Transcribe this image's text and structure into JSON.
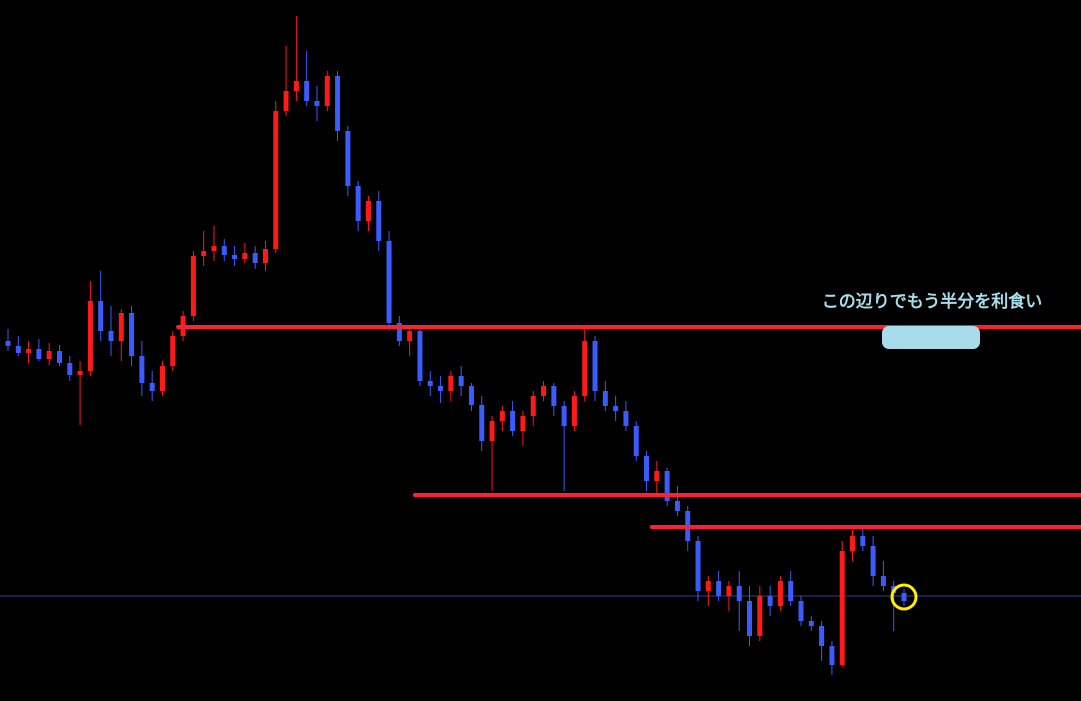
{
  "chart_data": {
    "type": "candlestick",
    "ylim": [
      0,
      701
    ],
    "up_color": "#ff1a1a",
    "down_color": "#3a5cff",
    "ohlc": [
      [
        360,
        372,
        350,
        355
      ],
      [
        355,
        365,
        345,
        348
      ],
      [
        348,
        360,
        338,
        352
      ],
      [
        352,
        362,
        340,
        342
      ],
      [
        342,
        358,
        336,
        350
      ],
      [
        350,
        356,
        335,
        338
      ],
      [
        338,
        345,
        320,
        326
      ],
      [
        326,
        340,
        276,
        330
      ],
      [
        330,
        420,
        325,
        400
      ],
      [
        400,
        430,
        360,
        370
      ],
      [
        370,
        395,
        345,
        360
      ],
      [
        360,
        392,
        340,
        388
      ],
      [
        388,
        395,
        335,
        345
      ],
      [
        345,
        360,
        305,
        318
      ],
      [
        318,
        330,
        300,
        310
      ],
      [
        310,
        340,
        305,
        335
      ],
      [
        335,
        370,
        330,
        365
      ],
      [
        365,
        390,
        360,
        385
      ],
      [
        385,
        450,
        380,
        445
      ],
      [
        445,
        470,
        435,
        450
      ],
      [
        450,
        475,
        440,
        455
      ],
      [
        455,
        462,
        440,
        446
      ],
      [
        446,
        455,
        435,
        442
      ],
      [
        442,
        458,
        438,
        448
      ],
      [
        448,
        455,
        432,
        438
      ],
      [
        438,
        460,
        430,
        452
      ],
      [
        452,
        600,
        448,
        590
      ],
      [
        590,
        655,
        585,
        610
      ],
      [
        610,
        685,
        600,
        620
      ],
      [
        620,
        650,
        595,
        600
      ],
      [
        600,
        615,
        580,
        595
      ],
      [
        595,
        630,
        590,
        625
      ],
      [
        625,
        630,
        560,
        570
      ],
      [
        570,
        575,
        505,
        515
      ],
      [
        515,
        520,
        470,
        480
      ],
      [
        480,
        505,
        470,
        500
      ],
      [
        500,
        510,
        450,
        460
      ],
      [
        460,
        470,
        370,
        378
      ],
      [
        378,
        385,
        355,
        360
      ],
      [
        360,
        375,
        345,
        370
      ],
      [
        370,
        372,
        315,
        320
      ],
      [
        320,
        330,
        305,
        315
      ],
      [
        315,
        325,
        298,
        310
      ],
      [
        310,
        330,
        300,
        325
      ],
      [
        325,
        335,
        305,
        315
      ],
      [
        315,
        318,
        290,
        296
      ],
      [
        296,
        305,
        250,
        260
      ],
      [
        260,
        285,
        210,
        280
      ],
      [
        280,
        295,
        270,
        290
      ],
      [
        290,
        300,
        265,
        270
      ],
      [
        270,
        290,
        255,
        285
      ],
      [
        285,
        310,
        275,
        305
      ],
      [
        305,
        320,
        300,
        315
      ],
      [
        315,
        318,
        285,
        295
      ],
      [
        295,
        300,
        210,
        275
      ],
      [
        275,
        310,
        270,
        305
      ],
      [
        305,
        372,
        300,
        360
      ],
      [
        360,
        365,
        300,
        310
      ],
      [
        310,
        320,
        290,
        295
      ],
      [
        295,
        305,
        280,
        290
      ],
      [
        290,
        300,
        270,
        275
      ],
      [
        275,
        280,
        240,
        245
      ],
      [
        245,
        250,
        210,
        220
      ],
      [
        220,
        240,
        205,
        230
      ],
      [
        230,
        233,
        195,
        200
      ],
      [
        200,
        215,
        185,
        190
      ],
      [
        190,
        195,
        150,
        160
      ],
      [
        160,
        165,
        100,
        110
      ],
      [
        110,
        125,
        95,
        120
      ],
      [
        120,
        130,
        100,
        105
      ],
      [
        105,
        120,
        90,
        115
      ],
      [
        115,
        130,
        70,
        100
      ],
      [
        100,
        115,
        55,
        65
      ],
      [
        65,
        115,
        60,
        105
      ],
      [
        105,
        115,
        85,
        95
      ],
      [
        95,
        125,
        90,
        120
      ],
      [
        120,
        130,
        95,
        100
      ],
      [
        100,
        105,
        75,
        80
      ],
      [
        80,
        85,
        70,
        75
      ],
      [
        75,
        80,
        40,
        55
      ],
      [
        55,
        60,
        26,
        36
      ],
      [
        36,
        160,
        34,
        150
      ],
      [
        150,
        171,
        140,
        165
      ],
      [
        165,
        172,
        150,
        155
      ],
      [
        155,
        165,
        115,
        125
      ],
      [
        125,
        140,
        110,
        115
      ],
      [
        115,
        120,
        70,
        108
      ],
      [
        108,
        112,
        95,
        100
      ]
    ],
    "levels": [
      {
        "value": 374,
        "from": 17
      },
      {
        "value": 206,
        "from": 40
      },
      {
        "value": 174,
        "from": 63
      }
    ],
    "level_color": "#ff2030",
    "current_price": 105,
    "current_color": "#34408a",
    "highlight": {
      "index": 87,
      "color": "#ffee00"
    },
    "annotation": {
      "text": "この辺りでもう半分を利食い",
      "color": "#a8dcea"
    }
  }
}
